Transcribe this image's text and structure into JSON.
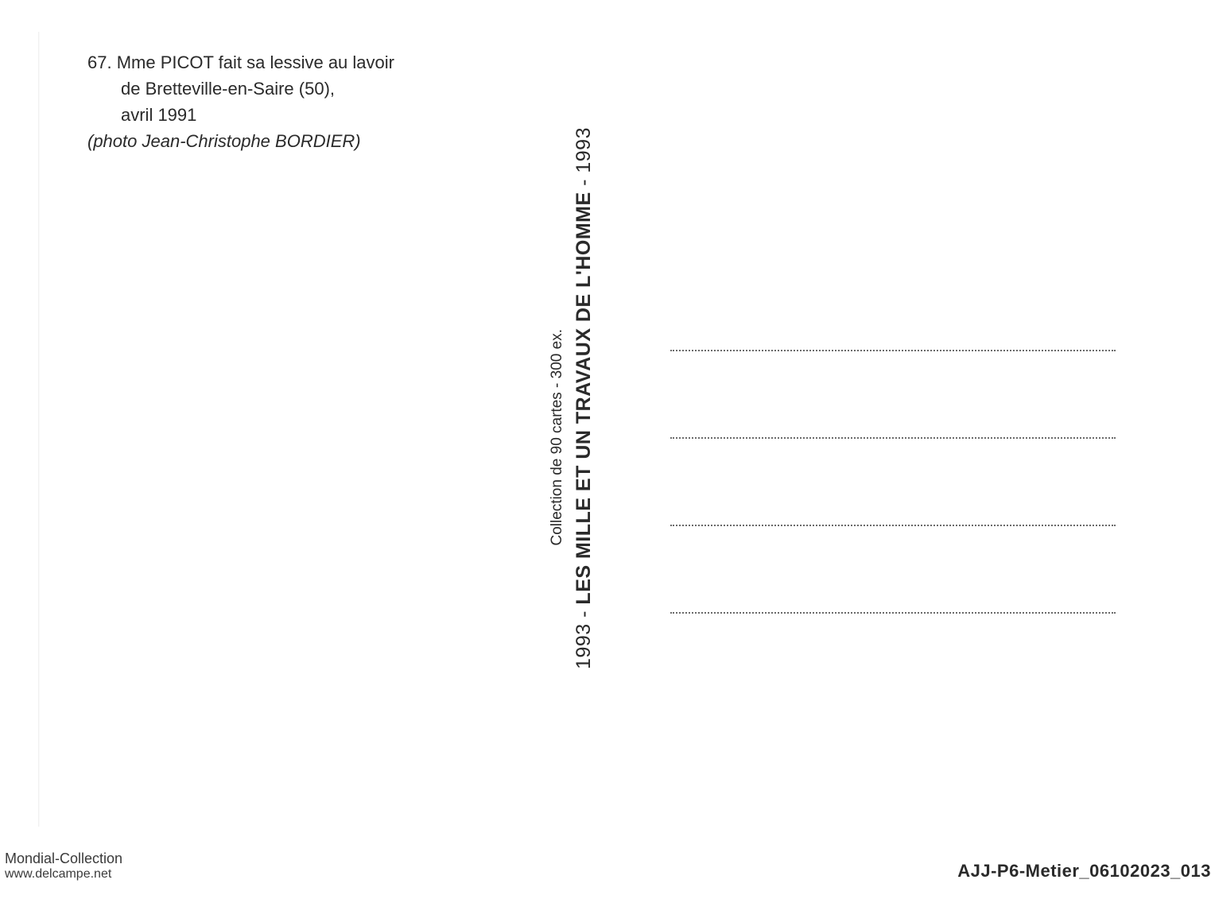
{
  "caption": {
    "number": "67.",
    "line1": "Mme PICOT fait sa lessive au lavoir",
    "line2": "de Bretteville-en-Saire (50),",
    "line3": "avril 1991",
    "credit": "(photo Jean-Christophe BORDIER)"
  },
  "vertical": {
    "year_start": "1993",
    "separator": " - ",
    "title": "LES MILLE ET UN TRAVAUX DE L'HOMME",
    "year_end": "1993",
    "subtitle": "Collection de 90 cartes - 300 ex."
  },
  "address_lines_count": 4,
  "footer": {
    "left_line1": "Mondial-Collection",
    "left_line2": "www.delcampe.net",
    "right": "AJJ-P6-Metier_06102023_013"
  },
  "colors": {
    "background": "#ffffff",
    "text": "#2a2a2a",
    "dotted": "#6a6a6a",
    "footer_text": "#3a3a3a"
  },
  "typography": {
    "caption_fontsize": 22,
    "vertical_main_fontsize": 25,
    "vertical_sub_fontsize": 19,
    "footer_left_fontsize": 18,
    "footer_right_fontsize": 22
  }
}
